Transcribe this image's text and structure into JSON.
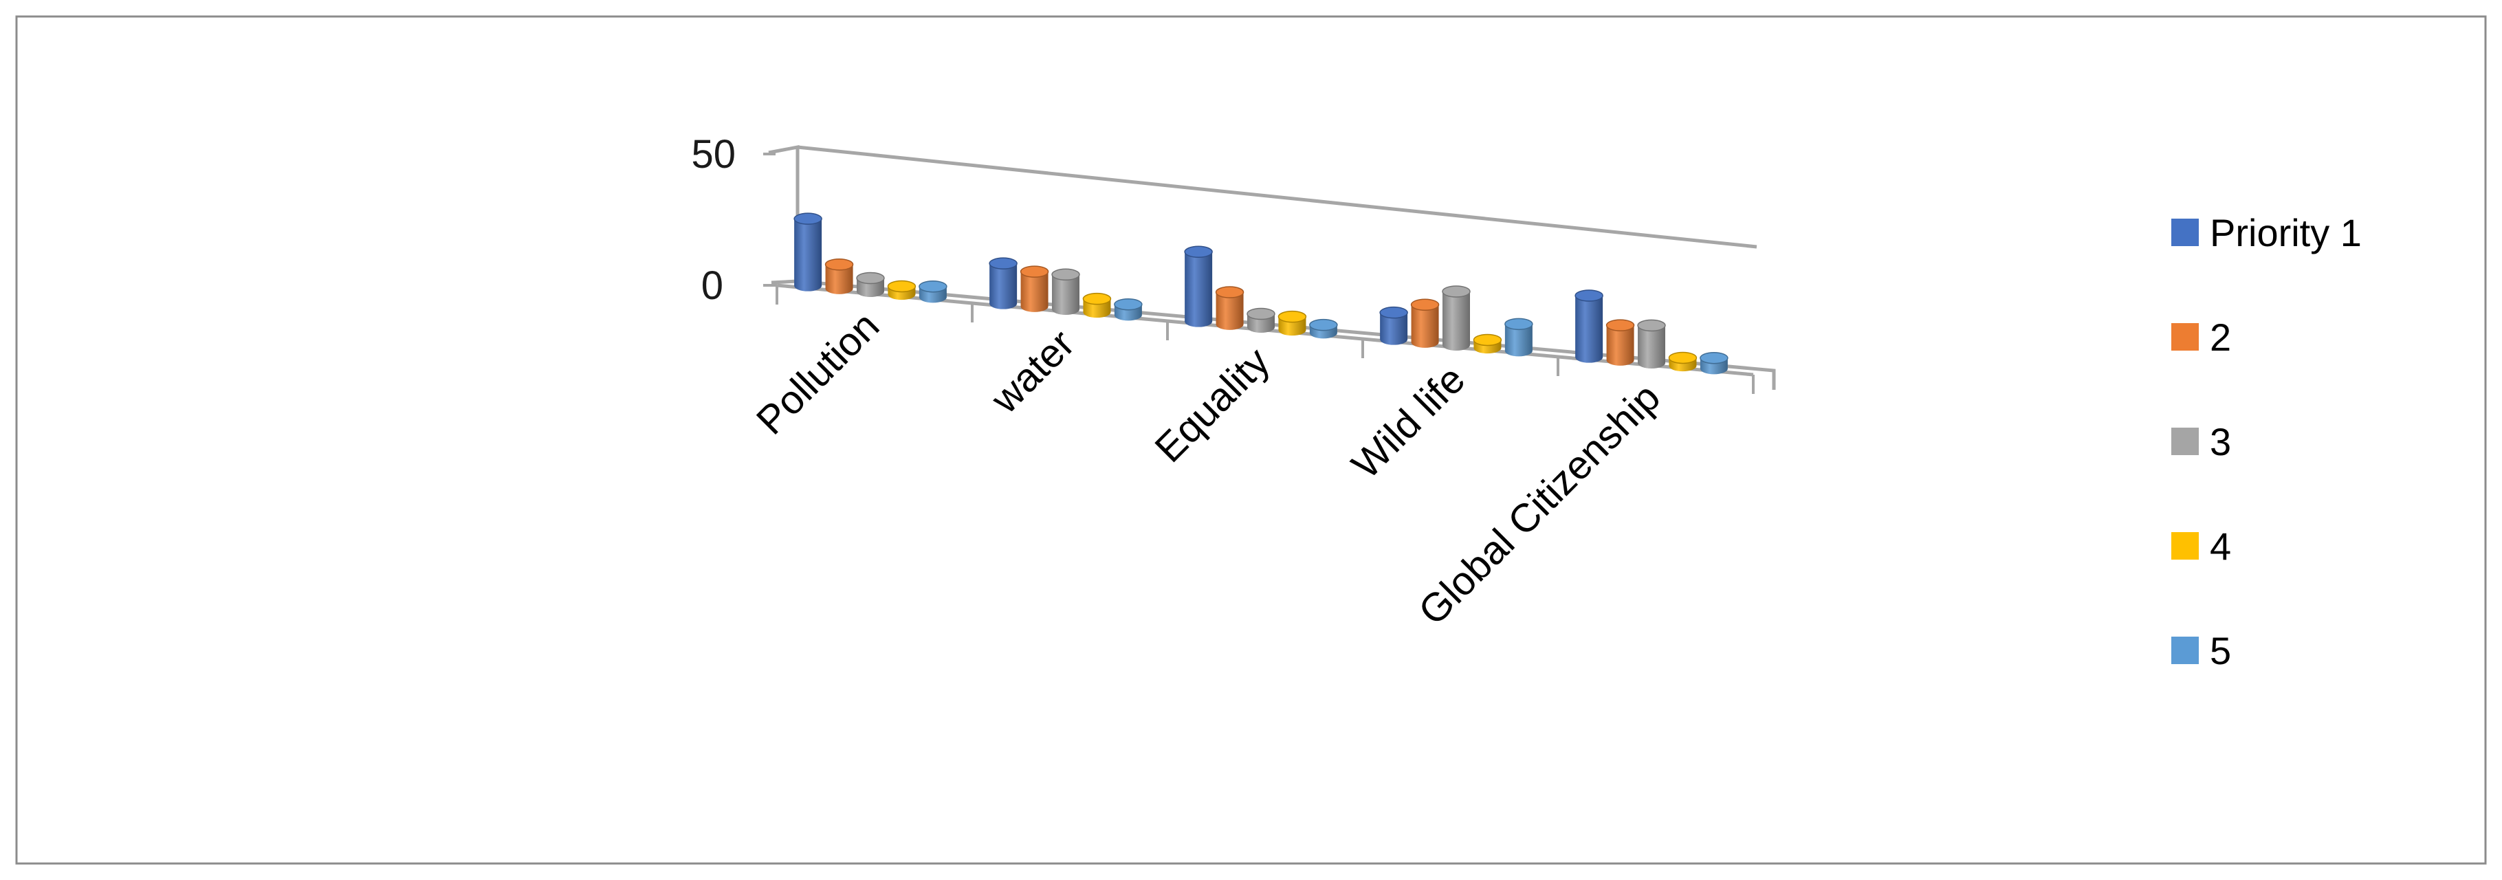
{
  "chart_data": {
    "type": "bar",
    "title": "",
    "xlabel": "",
    "ylabel": "",
    "ylim": [
      0,
      50
    ],
    "yticks": [
      "0",
      "50"
    ],
    "categories": [
      "Pollution",
      "water",
      "Equality",
      "Wild life",
      "Global Citizenship"
    ],
    "series": [
      {
        "name": "Priority 1",
        "color": "#4472C4",
        "values": [
          25,
          15,
          26,
          10,
          23
        ]
      },
      {
        "name": "2",
        "color": "#ED7D31",
        "values": [
          9,
          13,
          12,
          14,
          13
        ]
      },
      {
        "name": "3",
        "color": "#A5A5A5",
        "values": [
          5,
          13,
          5,
          20,
          14
        ]
      },
      {
        "name": "4",
        "color": "#FFC000",
        "values": [
          3,
          5,
          5,
          3,
          3
        ]
      },
      {
        "name": "5",
        "color": "#5B9BD5",
        "values": [
          4,
          4,
          3,
          10,
          4
        ]
      }
    ],
    "legend_position": "right",
    "grid": false,
    "style": "3d-cylinder"
  }
}
